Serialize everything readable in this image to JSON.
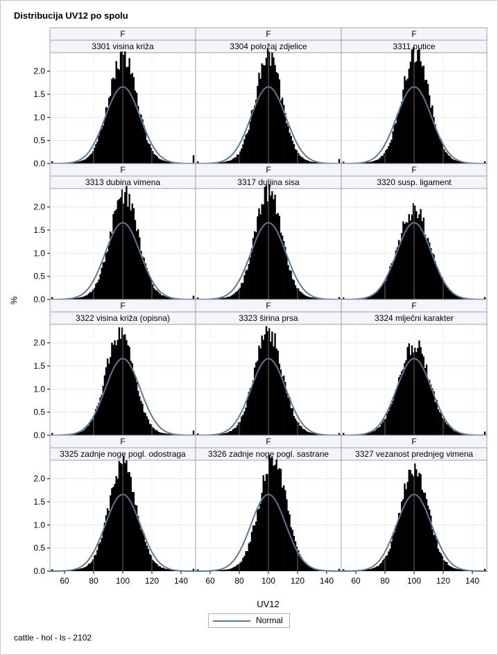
{
  "title": "Distribucija UV12 po spolu",
  "footnote": "cattle - hol - ls - 2102",
  "legend": {
    "label": "Normal",
    "line_color": "#5c7896"
  },
  "colors": {
    "bars": "#000000",
    "normal_curve": "#5c7896",
    "grid": "#e6e6e6",
    "strip_bg": "#f4f5fa",
    "panel_border": "#a0a0a0"
  },
  "chart_data": {
    "type": "histogram",
    "title": "Distribucija UV12 po spolu",
    "xlabel": "UV12",
    "ylabel": "%",
    "xlim": [
      50,
      150
    ],
    "ylim": [
      0,
      2.4
    ],
    "x_ticks": [
      60,
      80,
      100,
      120,
      140
    ],
    "y_ticks": [
      0.0,
      0.5,
      1.0,
      1.5,
      2.0
    ],
    "y_tick_labels": [
      "0.0",
      "0.5",
      "1.0",
      "1.5",
      "2.0"
    ],
    "grid": true,
    "legend_position": "bottom-center",
    "bin_width": 1,
    "bins_range": [
      51,
      149
    ],
    "normal_fit": {
      "mean": 100,
      "sd": 12,
      "peak_percent": 1.66
    },
    "panels": [
      {
        "sex": "F",
        "trait": "3301 visina križa",
        "peak_x": 100,
        "peak_percent": 2.25,
        "spread": 9.5,
        "edge_spike_high": 0.18,
        "edge_spike_low": 0.05
      },
      {
        "sex": "F",
        "trait": "3304 položaj zdjelice",
        "peak_x": 100,
        "peak_percent": 2.25,
        "spread": 9.0,
        "edge_spike_high": 0.1,
        "edge_spike_low": 0.05
      },
      {
        "sex": "F",
        "trait": "3311 putice",
        "peak_x": 101,
        "peak_percent": 2.3,
        "spread": 9.5,
        "edge_spike_high": 0.05,
        "edge_spike_low": 0.04
      },
      {
        "sex": "F",
        "trait": "3313 dubina vimena",
        "peak_x": 101,
        "peak_percent": 2.2,
        "spread": 9.5,
        "edge_spike_high": 0.08,
        "edge_spike_low": 0.05
      },
      {
        "sex": "F",
        "trait": "3317 duljina sisa",
        "peak_x": 100,
        "peak_percent": 2.25,
        "spread": 9.0,
        "edge_spike_high": 0.05,
        "edge_spike_low": 0.04
      },
      {
        "sex": "F",
        "trait": "3320 susp. ligament",
        "peak_x": 100,
        "peak_percent": 1.85,
        "spread": 11.0,
        "edge_spike_high": 0.05,
        "edge_spike_low": 0.04
      },
      {
        "sex": "F",
        "trait": "3322 visina križa (opisna)",
        "peak_x": 98,
        "peak_percent": 2.15,
        "spread": 9.5,
        "edge_spike_high": 0.1,
        "edge_spike_low": 0.05
      },
      {
        "sex": "F",
        "trait": "3323 širina prsa",
        "peak_x": 100,
        "peak_percent": 2.2,
        "spread": 9.5,
        "edge_spike_high": 0.05,
        "edge_spike_low": 0.04
      },
      {
        "sex": "F",
        "trait": "3324 mlječni karakter",
        "peak_x": 100,
        "peak_percent": 1.9,
        "spread": 10.5,
        "edge_spike_high": 0.08,
        "edge_spike_low": 0.05
      },
      {
        "sex": "F",
        "trait": "3325 zadnje noge pogl. odostraga",
        "peak_x": 100,
        "peak_percent": 2.2,
        "spread": 9.5,
        "edge_spike_high": 0.05,
        "edge_spike_low": 0.04
      },
      {
        "sex": "F",
        "trait": "3326 zadnje noge pogl. sastrane",
        "peak_x": 103,
        "peak_percent": 2.3,
        "spread": 9.5,
        "edge_spike_high": 0.05,
        "edge_spike_low": 0.04
      },
      {
        "sex": "F",
        "trait": "3327 vezanost prednjeg vimena",
        "peak_x": 100,
        "peak_percent": 2.15,
        "spread": 9.5,
        "edge_spike_high": 0.05,
        "edge_spike_low": 0.04
      }
    ]
  }
}
